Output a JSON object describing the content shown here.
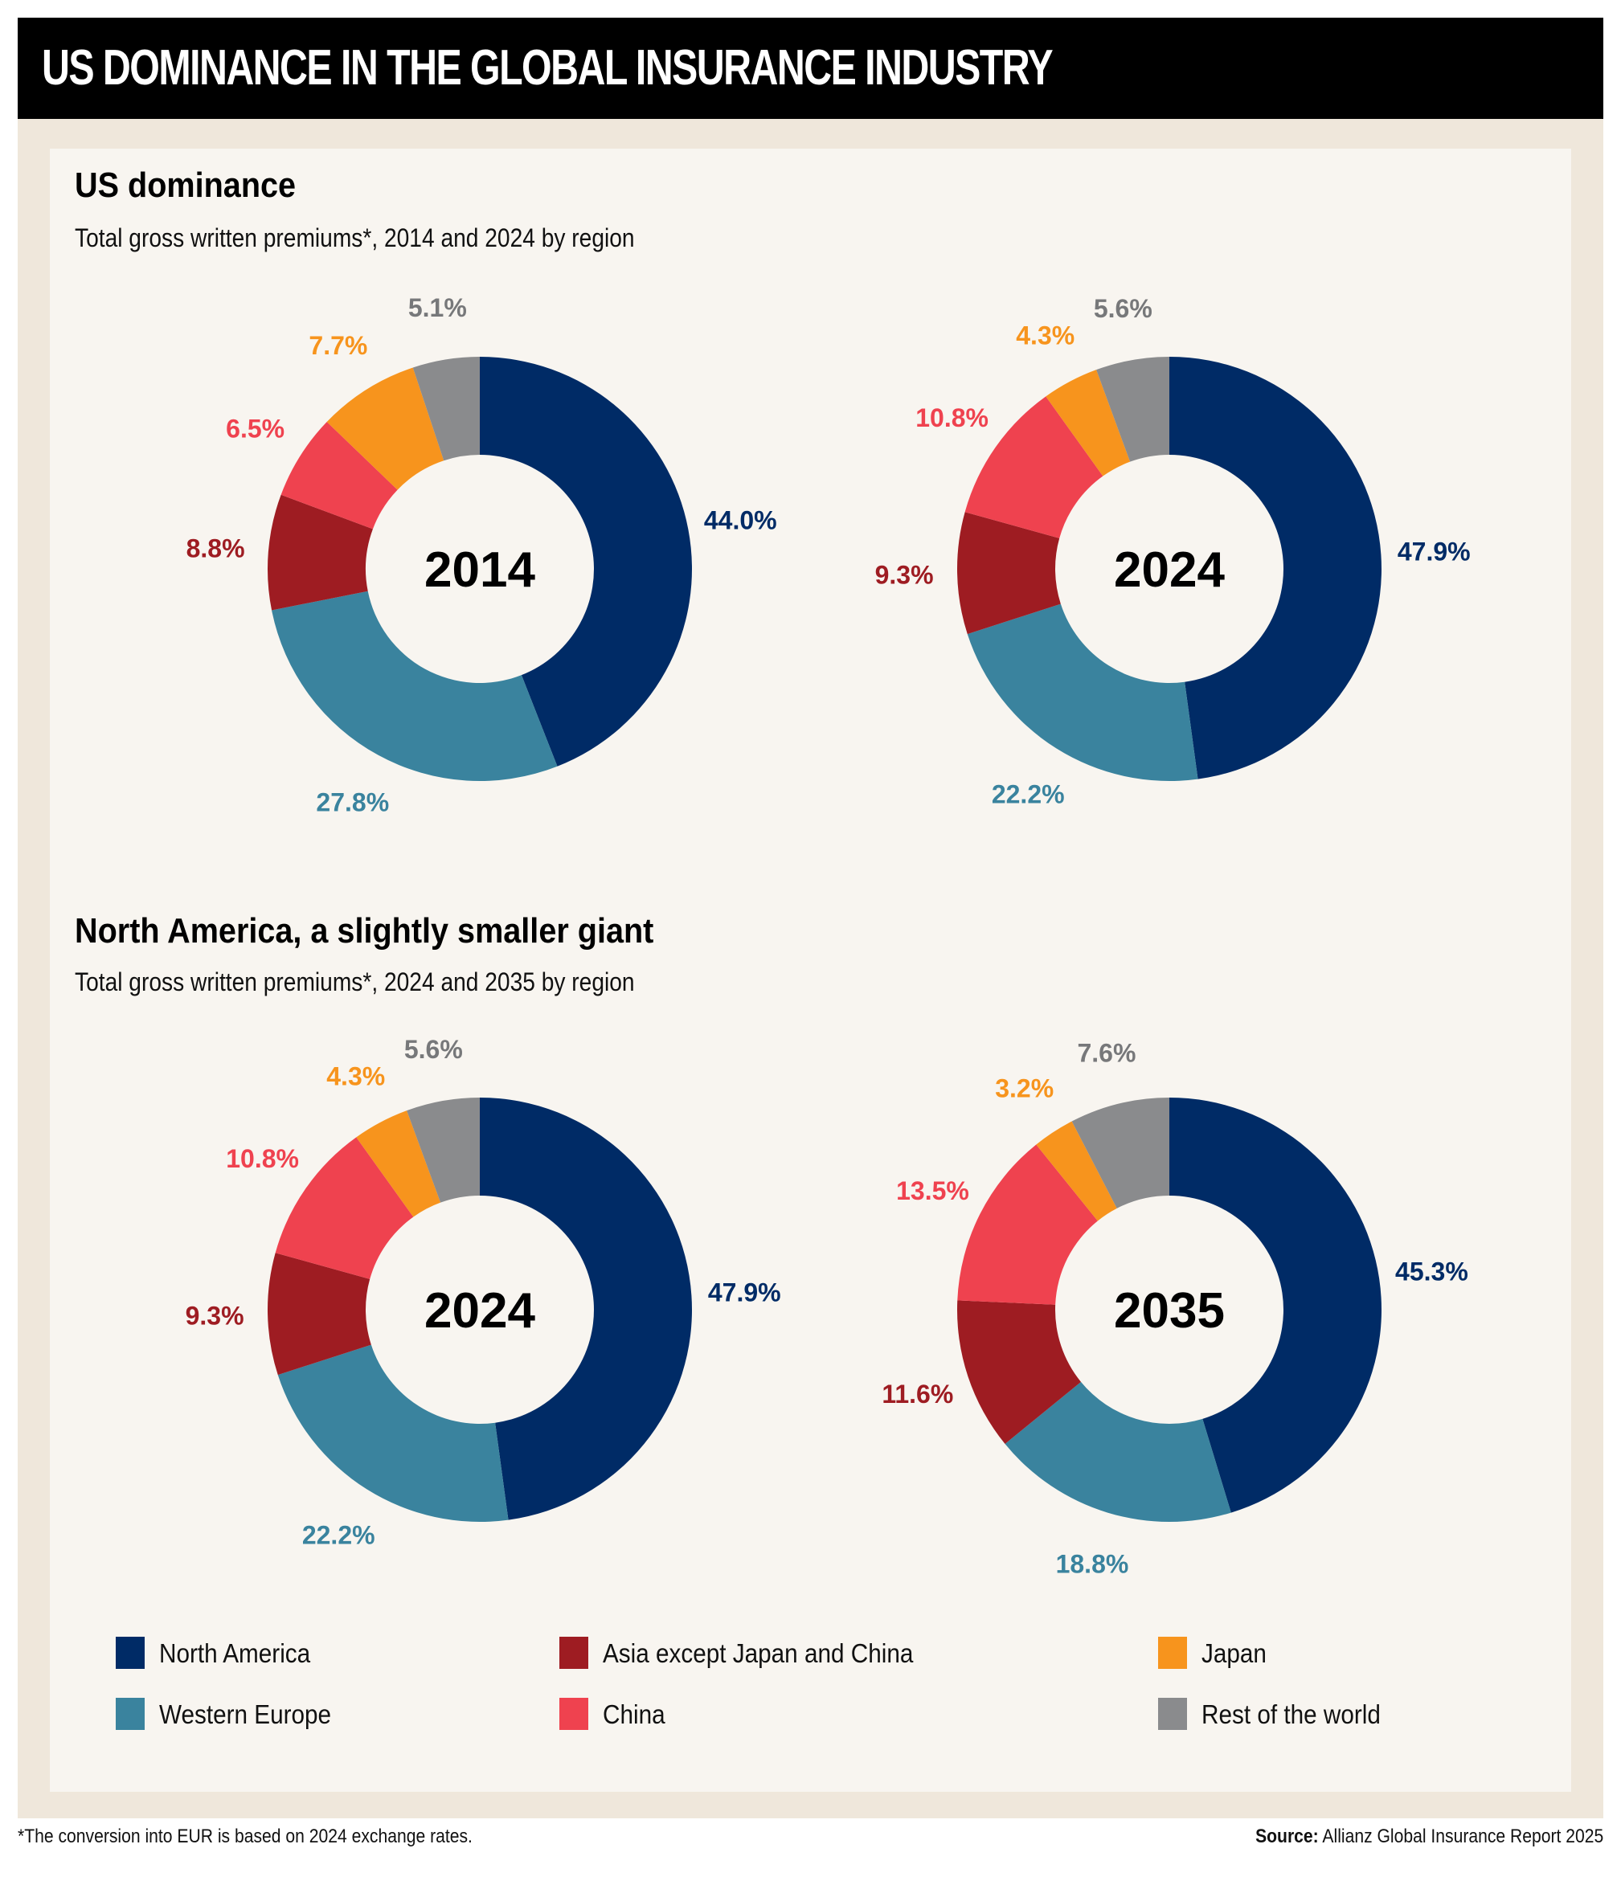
{
  "header": {
    "title": "US DOMINANCE IN THE GLOBAL INSURANCE INDUSTRY"
  },
  "sections": [
    {
      "title": "US dominance",
      "subtitle": "Total gross written premiums*, 2014 and 2024 by region"
    },
    {
      "title": "North America, a slightly smaller giant",
      "subtitle": "Total gross written premiums*, 2024 and 2035 by region"
    }
  ],
  "colors": {
    "north_america": "#002b66",
    "western_europe": "#3a839e",
    "asia_except": "#9e1c22",
    "china": "#ef424f",
    "japan": "#f7941d",
    "rest": "#8a8b8d"
  },
  "legend": [
    {
      "label": "North America",
      "color": "#002b66"
    },
    {
      "label": "Western Europe",
      "color": "#3a839e"
    },
    {
      "label": "Asia except Japan and China",
      "color": "#9e1c22"
    },
    {
      "label": "China",
      "color": "#ef424f"
    },
    {
      "label": "Japan",
      "color": "#f7941d"
    },
    {
      "label": "Rest of the world",
      "color": "#8a8b8d"
    }
  ],
  "chart_data": [
    {
      "type": "pie",
      "donut": true,
      "title": "2014",
      "categories": [
        "North America",
        "Western Europe",
        "Asia except Japan and China",
        "China",
        "Japan",
        "Rest of the world"
      ],
      "values": [
        44.0,
        27.8,
        8.8,
        6.5,
        7.7,
        5.1
      ],
      "labels": [
        "44.0%",
        "27.8%",
        "8.8%",
        "6.5%",
        "7.7%",
        "5.1%"
      ]
    },
    {
      "type": "pie",
      "donut": true,
      "title": "2024",
      "categories": [
        "North America",
        "Western Europe",
        "Asia except Japan and China",
        "China",
        "Japan",
        "Rest of the world"
      ],
      "values": [
        47.9,
        22.2,
        9.3,
        10.8,
        4.3,
        5.6
      ],
      "labels": [
        "47.9%",
        "22.2%",
        "9.3%",
        "10.8%",
        "4.3%",
        "5.6%"
      ]
    },
    {
      "type": "pie",
      "donut": true,
      "title": "2024",
      "categories": [
        "North America",
        "Western Europe",
        "Asia except Japan and China",
        "China",
        "Japan",
        "Rest of the world"
      ],
      "values": [
        47.9,
        22.2,
        9.3,
        10.8,
        4.3,
        5.6
      ],
      "labels": [
        "47.9%",
        "22.2%",
        "9.3%",
        "10.8%",
        "4.3%",
        "5.6%"
      ]
    },
    {
      "type": "pie",
      "donut": true,
      "title": "2035",
      "categories": [
        "North America",
        "Western Europe",
        "Asia except Japan and China",
        "China",
        "Japan",
        "Rest of the world"
      ],
      "values": [
        45.3,
        18.8,
        11.6,
        13.5,
        3.2,
        7.6
      ],
      "labels": [
        "45.3%",
        "18.8%",
        "11.6%",
        "13.5%",
        "3.2%",
        "7.6%"
      ]
    }
  ],
  "footer": {
    "footnote": "*The conversion into EUR is based on 2024 exchange rates.",
    "source_label": "Source:",
    "source_text": " Allianz Global Insurance Report 2025"
  }
}
